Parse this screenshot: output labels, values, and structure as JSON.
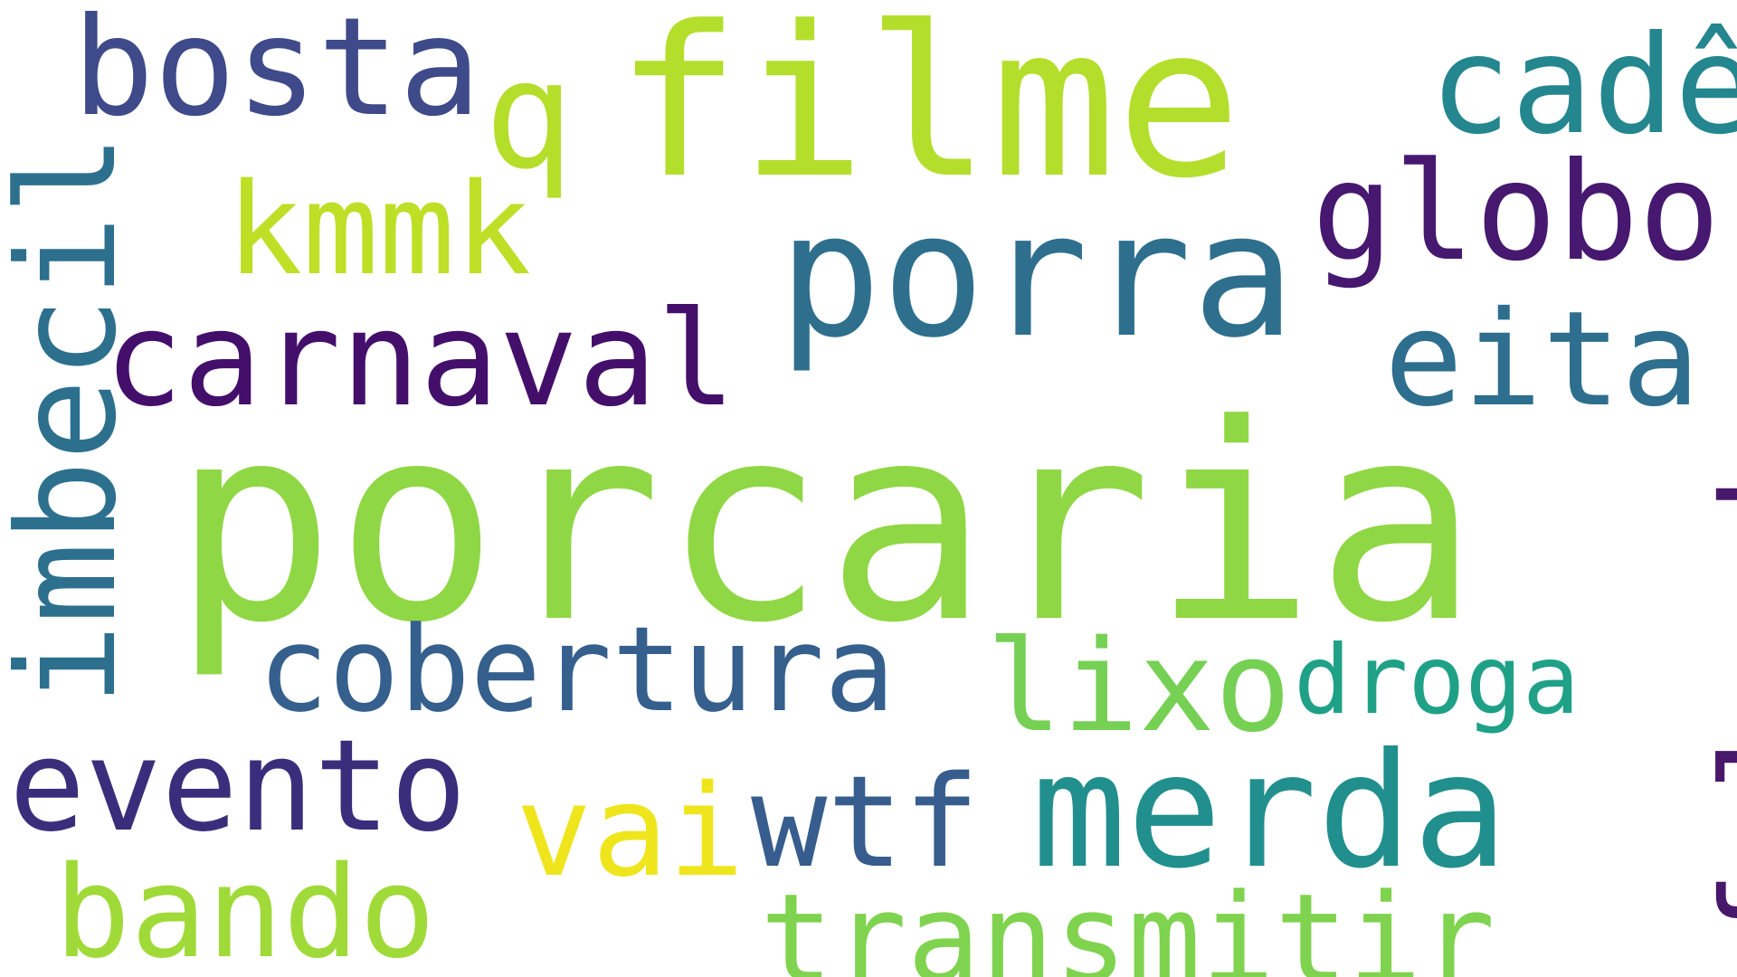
{
  "words": {
    "porcaria": {
      "text": "porcaria",
      "color": "#8fd744"
    },
    "filme": {
      "text": "filme",
      "color": "#b4de2c"
    },
    "porra": {
      "text": "porra",
      "color": "#2e6f8e"
    },
    "imbecil": {
      "text": "imbecil",
      "color": "#2d708e"
    },
    "bosta": {
      "text": "bosta",
      "color": "#3e4a89"
    },
    "cade": {
      "text": "cadê",
      "color": "#24868e"
    },
    "q": {
      "text": "q",
      "color": "#b5de2b"
    },
    "globo": {
      "text": "globo",
      "color": "#46186f"
    },
    "kmmk": {
      "text": "kmmk",
      "color": "#bddf26"
    },
    "carnaval": {
      "text": "carnaval",
      "color": "#440f6b"
    },
    "eita": {
      "text": "eita",
      "color": "#2e6e8e"
    },
    "falando": {
      "text": "falando",
      "color": "#48186a"
    },
    "cobertura": {
      "text": "cobertura",
      "color": "#355f8d"
    },
    "lixo": {
      "text": "lixo",
      "color": "#75d054"
    },
    "droga": {
      "text": "droga",
      "color": "#1fa187"
    },
    "evento": {
      "text": "evento",
      "color": "#3a2e7c"
    },
    "merda": {
      "text": "merda",
      "color": "#218f8d"
    },
    "vai": {
      "text": "vai",
      "color": "#efe51c"
    },
    "wtf": {
      "text": "wtf",
      "color": "#365d8d"
    },
    "bando": {
      "text": "bando",
      "color": "#a0da39"
    },
    "transmitir": {
      "text": "transmitir",
      "color": "#7fd34e"
    }
  }
}
